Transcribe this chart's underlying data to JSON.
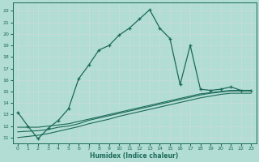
{
  "xlabel": "Humidex (Indice chaleur)",
  "background_color": "#b2ddd4",
  "grid_color": "#d4ece6",
  "line_color": "#1a6b5a",
  "xlim": [
    -0.5,
    23.5
  ],
  "ylim": [
    10.5,
    22.7
  ],
  "yticks": [
    11,
    12,
    13,
    14,
    15,
    16,
    17,
    18,
    19,
    20,
    21,
    22
  ],
  "xticks": [
    0,
    1,
    2,
    3,
    4,
    5,
    6,
    7,
    8,
    9,
    10,
    11,
    12,
    13,
    14,
    15,
    16,
    17,
    18,
    19,
    20,
    21,
    22,
    23
  ],
  "main_x": [
    0,
    1,
    2,
    3,
    4,
    5,
    6,
    7,
    8,
    9,
    10,
    11,
    12,
    13,
    14,
    15,
    16,
    17,
    18,
    19,
    20,
    21,
    22,
    23
  ],
  "main_y": [
    13.2,
    12.0,
    10.9,
    11.8,
    12.5,
    13.5,
    16.1,
    17.3,
    18.6,
    19.0,
    19.9,
    20.5,
    21.3,
    22.1,
    20.5,
    19.6,
    15.6,
    19.0,
    15.2,
    15.1,
    15.2,
    15.4,
    15.1,
    15.1
  ],
  "ref1_x": [
    0,
    1,
    2,
    3,
    4,
    5,
    6,
    7,
    8,
    9,
    10,
    11,
    12,
    13,
    14,
    15,
    16,
    17,
    18,
    19,
    20,
    21,
    22,
    23
  ],
  "ref1_y": [
    11.9,
    11.9,
    11.9,
    12.0,
    12.1,
    12.2,
    12.4,
    12.6,
    12.8,
    13.0,
    13.2,
    13.4,
    13.6,
    13.8,
    14.0,
    14.2,
    14.4,
    14.6,
    14.8,
    14.9,
    15.0,
    15.1,
    15.1,
    15.1
  ],
  "ref2_x": [
    0,
    1,
    2,
    3,
    4,
    5,
    6,
    7,
    8,
    9,
    10,
    11,
    12,
    13,
    14,
    15,
    16,
    17,
    18,
    19,
    20,
    21,
    22,
    23
  ],
  "ref2_y": [
    11.5,
    11.55,
    11.6,
    11.7,
    11.9,
    12.0,
    12.2,
    12.5,
    12.7,
    12.9,
    13.1,
    13.3,
    13.5,
    13.7,
    13.9,
    14.1,
    14.3,
    14.5,
    14.7,
    14.85,
    14.95,
    15.05,
    15.05,
    15.05
  ],
  "ref3_x": [
    0,
    1,
    2,
    3,
    4,
    5,
    6,
    7,
    8,
    9,
    10,
    11,
    12,
    13,
    14,
    15,
    16,
    17,
    18,
    19,
    20,
    21,
    22,
    23
  ],
  "ref3_y": [
    11.0,
    11.1,
    11.2,
    11.35,
    11.55,
    11.75,
    11.95,
    12.2,
    12.4,
    12.6,
    12.85,
    13.05,
    13.25,
    13.45,
    13.65,
    13.85,
    14.05,
    14.25,
    14.45,
    14.6,
    14.75,
    14.85,
    14.85,
    14.85
  ]
}
